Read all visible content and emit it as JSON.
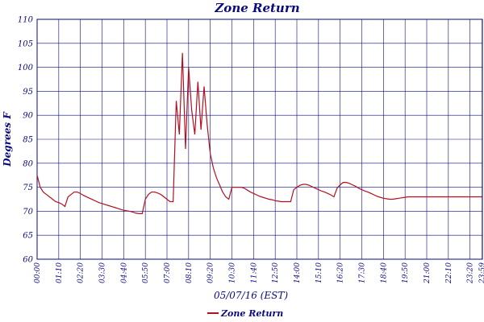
{
  "chart_data": {
    "type": "line",
    "title": "Zone Return",
    "xlabel": "05/07/16 (EST)",
    "ylabel": "Degrees F",
    "ylim": [
      60,
      110
    ],
    "yticks": [
      60,
      65,
      70,
      75,
      80,
      85,
      90,
      95,
      100,
      105,
      110
    ],
    "xlim": [
      0,
      1440
    ],
    "xtick_labels": [
      "00:00",
      "01:10",
      "02:20",
      "03:30",
      "04:40",
      "05:50",
      "07:00",
      "08:10",
      "09:20",
      "10:30",
      "11:40",
      "12:50",
      "14:00",
      "15:10",
      "16:20",
      "17:30",
      "18:40",
      "19:50",
      "21:00",
      "22:10",
      "23:20",
      "23:59"
    ],
    "x_unit": "minutes since 00:00",
    "grid": true,
    "legend_placement": "bottom-center",
    "series": [
      {
        "name": "Zone Return",
        "color": "#b01020",
        "x": [
          0,
          10,
          20,
          30,
          40,
          50,
          60,
          70,
          80,
          90,
          100,
          110,
          120,
          130,
          140,
          150,
          160,
          170,
          180,
          190,
          200,
          210,
          220,
          230,
          240,
          250,
          260,
          270,
          280,
          290,
          300,
          310,
          320,
          330,
          340,
          350,
          360,
          370,
          380,
          390,
          400,
          410,
          420,
          430,
          440,
          450,
          460,
          470,
          480,
          490,
          500,
          510,
          520,
          530,
          540,
          550,
          560,
          570,
          580,
          590,
          600,
          610,
          620,
          630,
          640,
          650,
          660,
          670,
          680,
          690,
          700,
          710,
          720,
          730,
          740,
          750,
          760,
          770,
          780,
          790,
          800,
          810,
          820,
          830,
          840,
          850,
          860,
          870,
          880,
          890,
          900,
          910,
          920,
          930,
          940,
          950,
          960,
          970,
          980,
          990,
          1000,
          1010,
          1020,
          1030,
          1040,
          1050,
          1060,
          1070,
          1080,
          1090,
          1100,
          1110,
          1120,
          1130,
          1140,
          1150,
          1160,
          1170,
          1180,
          1190,
          1200,
          1210,
          1220,
          1230,
          1240,
          1250,
          1260,
          1270,
          1280,
          1290,
          1300,
          1310,
          1320,
          1330,
          1340,
          1350,
          1360,
          1370,
          1380,
          1390,
          1400,
          1410,
          1420,
          1430,
          1439
        ],
        "values": [
          77.5,
          75.0,
          74.0,
          73.5,
          73.0,
          72.5,
          72.0,
          71.8,
          71.5,
          71.0,
          73.0,
          73.5,
          74.0,
          74.0,
          73.7,
          73.3,
          73.0,
          72.7,
          72.4,
          72.1,
          71.8,
          71.6,
          71.4,
          71.2,
          71.0,
          70.8,
          70.6,
          70.4,
          70.2,
          70.1,
          70.0,
          69.8,
          69.6,
          69.5,
          69.5,
          72.5,
          73.5,
          74.0,
          74.0,
          73.8,
          73.5,
          73.0,
          72.5,
          72.0,
          72.0,
          93.0,
          86.0,
          103.0,
          83.0,
          100.0,
          91.0,
          86.0,
          97.0,
          87.0,
          96.0,
          88.0,
          82.0,
          79.0,
          77.0,
          75.5,
          74.0,
          73.0,
          72.5,
          75.0,
          75.0,
          75.0,
          75.0,
          74.8,
          74.4,
          74.0,
          73.7,
          73.4,
          73.1,
          72.9,
          72.7,
          72.5,
          72.4,
          72.2,
          72.1,
          72.0,
          72.0,
          72.0,
          72.0,
          74.5,
          75.0,
          75.4,
          75.6,
          75.6,
          75.4,
          75.1,
          74.8,
          74.5,
          74.2,
          74.0,
          73.7,
          73.4,
          73.0,
          74.8,
          75.5,
          76.0,
          76.0,
          75.8,
          75.5,
          75.2,
          74.8,
          74.5,
          74.2,
          74.0,
          73.7,
          73.4,
          73.1,
          72.9,
          72.7,
          72.6,
          72.5,
          72.5,
          72.6,
          72.7,
          72.8,
          72.9,
          73.0,
          73.0,
          73.0,
          73.0,
          73.0,
          73.0,
          73.0,
          73.0,
          73.0,
          73.0,
          73.0,
          73.0,
          73.0,
          73.0,
          73.0,
          73.0,
          73.0,
          73.0,
          73.0,
          73.0,
          73.0,
          73.0,
          73.0,
          73.0,
          73.0
        ]
      }
    ]
  }
}
